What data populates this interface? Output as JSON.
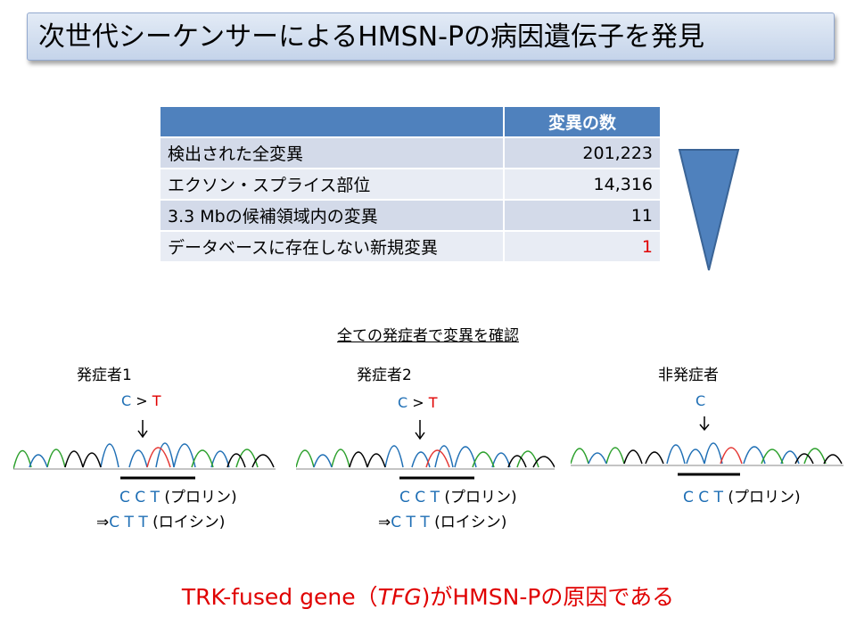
{
  "title": "次世代シーケンサーによるHMSN-Pの病因遺伝子を発見",
  "table": {
    "header_blank": "",
    "header_count": "変異の数",
    "rows": [
      {
        "label": "検出された全変異",
        "value": "201,223"
      },
      {
        "label": "エクソン・スプライス部位",
        "value": "14,316"
      },
      {
        "label": "3.3 Mbの候補領域内の変異",
        "value": "11"
      },
      {
        "label": "データベースに存在しない新規変異",
        "value": "1"
      }
    ]
  },
  "confirm_heading": "全ての発症者で変異を確認",
  "panels": [
    {
      "label": "発症者1",
      "mutation": {
        "ref": "C",
        "sep": " > ",
        "alt": "T"
      },
      "codon_ref": {
        "c1": "C",
        "c2": "C",
        "c3": "T",
        "aa": " (プロリン)"
      },
      "codon_mut": {
        "arrow": "⇒",
        "c1": "C",
        "c2": "T",
        "c3": "T",
        "aa": " (ロイシン)"
      }
    },
    {
      "label": "発症者2",
      "mutation": {
        "ref": "C",
        "sep": " > ",
        "alt": "T"
      },
      "codon_ref": {
        "c1": "C",
        "c2": "C",
        "c3": "T",
        "aa": " (プロリン)"
      },
      "codon_mut": {
        "arrow": "⇒",
        "c1": "C",
        "c2": "T",
        "c3": "T",
        "aa": " (ロイシン)"
      }
    },
    {
      "label": "非発症者",
      "mutation": {
        "ref": "C"
      },
      "codon_ref": {
        "c1": "C",
        "c2": "C",
        "c3": "T",
        "aa": " (プロリン)"
      }
    }
  ],
  "footer": {
    "pre": "TRK-fused gene（",
    "italic": "TFG",
    "post": ")がHMSN-Pの原因である"
  },
  "colors": {
    "accent_blue": "#4f81bd",
    "red": "#e00000",
    "blue_base": "#1f6fb5"
  }
}
